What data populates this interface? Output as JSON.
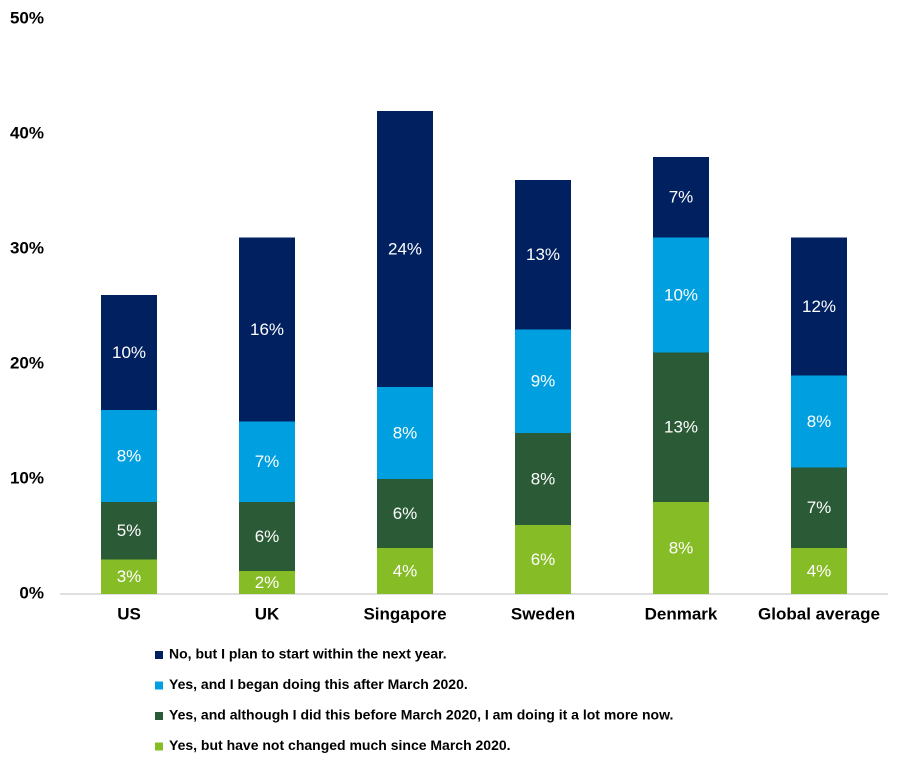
{
  "chart_data": {
    "type": "stacked_bar",
    "categories": [
      "US",
      "UK",
      "Singapore",
      "Sweden",
      "Denmark",
      "Global average"
    ],
    "series": [
      {
        "name": "Yes, but have not changed much since March 2020.",
        "color": "#86bc25",
        "values": [
          3,
          2,
          4,
          6,
          8,
          4
        ],
        "value_labels": [
          "3%",
          "2%",
          "4%",
          "6%",
          "8%",
          "4%"
        ]
      },
      {
        "name": "Yes, and although I did this before March 2020, I am doing it a lot more now.",
        "color": "#2b5a36",
        "values": [
          5,
          6,
          6,
          8,
          13,
          7
        ],
        "value_labels": [
          "5%",
          "6%",
          "6%",
          "8%",
          "13%",
          "7%"
        ]
      },
      {
        "name": "Yes, and I began doing this after March 2020.",
        "color": "#009fdf",
        "values": [
          8,
          7,
          8,
          9,
          10,
          8
        ],
        "value_labels": [
          "8%",
          "7%",
          "8%",
          "9%",
          "10%",
          "8%"
        ]
      },
      {
        "name": "No, but I plan to start within the next year.",
        "color": "#002060",
        "values": [
          10,
          16,
          24,
          13,
          7,
          12
        ],
        "value_labels": [
          "10%",
          "16%",
          "24%",
          "13%",
          "7%",
          "12%"
        ]
      }
    ],
    "ylim": [
      0,
      50
    ],
    "yticks": [
      {
        "value": 0,
        "label": "0%"
      },
      {
        "value": 10,
        "label": "10%"
      },
      {
        "value": 20,
        "label": "20%"
      },
      {
        "value": 30,
        "label": "30%"
      },
      {
        "value": 40,
        "label": "40%"
      },
      {
        "value": 50,
        "label": "50%"
      }
    ]
  }
}
